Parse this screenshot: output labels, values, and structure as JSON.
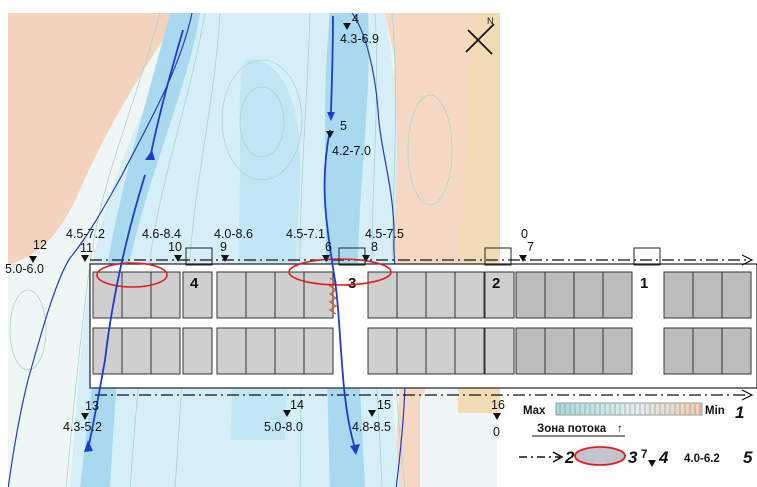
{
  "compass": {
    "north_label": "N"
  },
  "wells": [
    {
      "id": "4",
      "range": "4.3-6.9"
    },
    {
      "id": "5",
      "range": "4.2-7.0"
    },
    {
      "id": "12",
      "range": "5.0-6.0"
    },
    {
      "id": "11",
      "range": "4.5-7.2"
    },
    {
      "id": "10",
      "range": "4.6-8.4"
    },
    {
      "id": "9",
      "range": "4.0-8.6"
    },
    {
      "id": "6",
      "range": "4.5-7.1"
    },
    {
      "id": "8",
      "range": "4.5-7.5"
    },
    {
      "id": "7",
      "range": "0"
    },
    {
      "id": "13",
      "range": "4.3-5.2"
    },
    {
      "id": "14",
      "range": "5.0-8.0"
    },
    {
      "id": "15",
      "range": "4.8-8.5"
    },
    {
      "id": "16",
      "range": "0"
    }
  ],
  "sections": [
    "4",
    "3",
    "2",
    "1"
  ],
  "legend": {
    "max_label": "Max",
    "min_label": "Min",
    "item1_number": "1",
    "flow_zone_label": "Зона потока",
    "flow_zone_arrow": "↑",
    "item2_number": "2",
    "item3_number": "3",
    "item4_well_id": "7",
    "item4_number": "4",
    "item5_range": "4.0-6.2",
    "item5_number": "5"
  },
  "colors": {
    "flow_core": "#a9d9ef",
    "flow_mid": "#d5eef7",
    "flow_edge": "#eaf7f9",
    "hot_zone": "#f3d3bd",
    "hot_strip": "#f2dcb6",
    "contour_blue": "#1f3fbf",
    "stream_arrow": "#1d3dd0",
    "anomaly_ellipse": "#e02020",
    "building_block": "#bcbcbc",
    "block_edge": "#333333",
    "crack": "#e05020"
  }
}
